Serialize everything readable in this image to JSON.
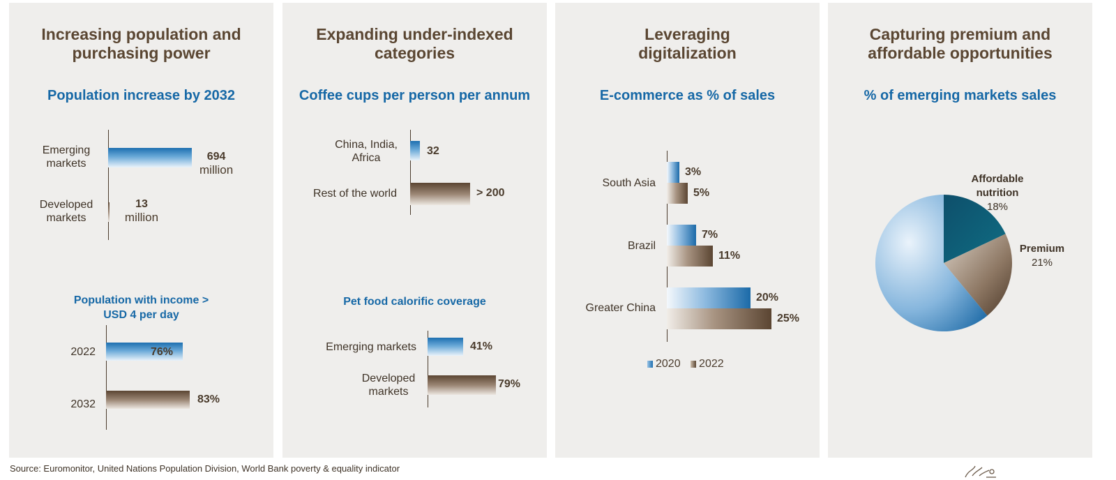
{
  "panels": [
    {
      "title": "Increasing population and purchasing power",
      "charts": [
        "Population increase by 2032",
        "Population with income > USD 4 per day"
      ]
    },
    {
      "title": "Expanding under-indexed categories",
      "charts": [
        "Coffee cups per person per annum",
        "Pet food calorific coverage"
      ]
    },
    {
      "title": "Leveraging digitalization",
      "charts": [
        "E-commerce as % of sales"
      ]
    },
    {
      "title": "Capturing premium and affordable opportunities",
      "charts": [
        "% of emerging markets sales"
      ]
    }
  ],
  "source": "Source: Euromonitor, United Nations Population Division, World Bank poverty & equality indicator",
  "colors": {
    "blue": "#1d6fb0",
    "brown": "#5b4532",
    "title": "#5a4632",
    "subtitle": "#1668a6"
  },
  "chart_data": [
    {
      "type": "bar",
      "orientation": "horizontal",
      "title": "Population increase by 2032",
      "categories": [
        "Emerging markets",
        "Developed markets"
      ],
      "values": [
        694,
        13
      ],
      "labels": [
        "694",
        "13"
      ],
      "unit": "million",
      "colors": [
        "blue",
        "brown"
      ]
    },
    {
      "type": "bar",
      "orientation": "horizontal",
      "title": "Population with income > USD 4 per day",
      "categories": [
        "2022",
        "2032"
      ],
      "values": [
        76,
        83
      ],
      "labels": [
        "76%",
        "83%"
      ],
      "colors": [
        "blue",
        "brown"
      ]
    },
    {
      "type": "bar",
      "orientation": "horizontal",
      "title": "Coffee cups per person per annum",
      "categories": [
        "China, India, Africa",
        "Rest of the world"
      ],
      "values": [
        32,
        200
      ],
      "labels": [
        "32",
        "> 200"
      ],
      "colors": [
        "blue",
        "brown"
      ]
    },
    {
      "type": "bar",
      "orientation": "horizontal",
      "title": "Pet food calorific coverage",
      "categories": [
        "Emerging markets",
        "Developed markets"
      ],
      "values": [
        41,
        79
      ],
      "labels": [
        "41%",
        "79%"
      ],
      "colors": [
        "blue",
        "brown"
      ]
    },
    {
      "type": "bar",
      "orientation": "horizontal",
      "title": "E-commerce as % of sales",
      "categories": [
        "South Asia",
        "Brazil",
        "Greater China"
      ],
      "series": [
        {
          "name": "2020",
          "values": [
            3,
            7,
            20
          ],
          "labels": [
            "3%",
            "7%",
            "20%"
          ],
          "color": "blue"
        },
        {
          "name": "2022",
          "values": [
            5,
            11,
            25
          ],
          "labels": [
            "5%",
            "11%",
            "25%"
          ],
          "color": "brown"
        }
      ],
      "legend": "bottom"
    },
    {
      "type": "pie",
      "title": "% of emerging markets sales",
      "slices": [
        {
          "name": "Affordable nutrition",
          "value": 18,
          "label": "18%",
          "color": "#0d5f78"
        },
        {
          "name": "Premium",
          "value": 21,
          "label": "21%",
          "color": "#6b5744"
        },
        {
          "name": "",
          "value": 61,
          "label": "",
          "color": "#4d91c8"
        }
      ]
    }
  ]
}
